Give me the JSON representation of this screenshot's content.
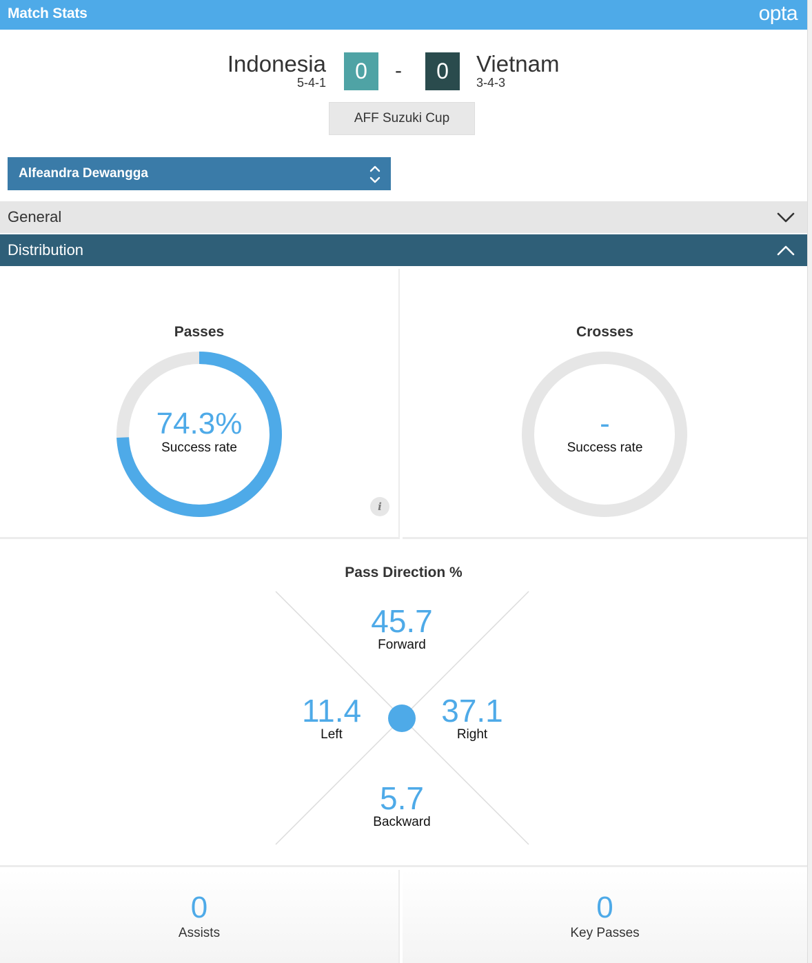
{
  "header": {
    "title": "Match Stats",
    "logo": "opta"
  },
  "match": {
    "home": {
      "name": "Indonesia",
      "formation": "5-4-1",
      "score": "0",
      "color": "#4fa3a5"
    },
    "away": {
      "name": "Vietnam",
      "formation": "3-4-3",
      "score": "0",
      "color": "#2a4b4d"
    },
    "separator": "-",
    "competition": "AFF Suzuki Cup"
  },
  "player_select": {
    "selected": "Alfeandra Dewangga",
    "icon": "up-down-arrows-icon"
  },
  "sections": {
    "general": {
      "label": "General",
      "icon": "chevron-down-icon"
    },
    "distribution": {
      "label": "Distribution",
      "icon": "chevron-up-icon"
    }
  },
  "passes": {
    "title": "Passes",
    "value": "74.3%",
    "fraction": 0.743,
    "label": "Success rate",
    "info_icon": "i"
  },
  "crosses": {
    "title": "Crosses",
    "value": "-",
    "fraction": 0,
    "label": "Success rate"
  },
  "pass_direction": {
    "title": "Pass Direction %",
    "forward": {
      "value": "45.7",
      "label": "Forward"
    },
    "left": {
      "value": "11.4",
      "label": "Left"
    },
    "right": {
      "value": "37.1",
      "label": "Right"
    },
    "backward": {
      "value": "5.7",
      "label": "Backward"
    }
  },
  "assists": {
    "value": "0",
    "label": "Assists"
  },
  "key_passes": {
    "value": "0",
    "label": "Key Passes"
  },
  "colors": {
    "accent": "#4eaae8",
    "section_dark": "#2f5f78",
    "select": "#3a7ba8",
    "ring_track": "#e6e6e6"
  }
}
